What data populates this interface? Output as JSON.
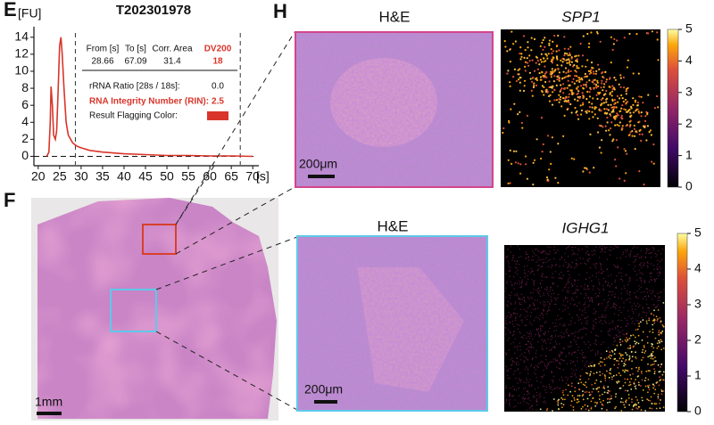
{
  "panel_labels": {
    "e": "E",
    "f": "F",
    "h": "H"
  },
  "chart_data": {
    "type": "line",
    "title": "T202301978",
    "y_unit": "[FU]",
    "x_unit": "[s]",
    "x": [
      22,
      22.5,
      22.8,
      23,
      23.3,
      23.6,
      24,
      24.3,
      24.6,
      25,
      25.3,
      25.6,
      26,
      26.5,
      27,
      28,
      29,
      30,
      32,
      35,
      40,
      45,
      50,
      55,
      60,
      65,
      70
    ],
    "series": [
      {
        "name": "T202301978",
        "color": "#d9352a",
        "values": [
          0,
          0.5,
          4,
          8.2,
          6,
          2.5,
          2,
          3,
          7,
          13,
          14,
          12,
          8,
          4,
          2.5,
          1.6,
          1.2,
          1,
          0.7,
          0.5,
          0.3,
          0.2,
          0.1,
          0.1,
          0.05,
          0.05,
          0
        ]
      }
    ],
    "xlim": [
      19,
      71
    ],
    "ylim": [
      -1,
      14.5
    ],
    "xticks": [
      20,
      25,
      30,
      35,
      40,
      45,
      50,
      55,
      60,
      65,
      70
    ],
    "yticks": [
      0,
      2,
      4,
      6,
      8,
      10,
      12,
      14
    ],
    "baseline": 0,
    "table": {
      "headers": [
        "From [s]",
        "To [s]",
        "Corr. Area",
        "DV200"
      ],
      "from": 28.66,
      "to": 67.09,
      "corr_area": 31.4,
      "dv200": 18,
      "ratio_label": "rRNA Ratio [28s / 18s]:",
      "ratio_value": "0.0",
      "rin_label": "RNA Integrity Number (RIN):",
      "rin_value": 2.5,
      "flag_label": "Result Flagging Color:",
      "flag_color": "#d9352a"
    }
  },
  "images": {
    "he_top": {
      "title": "H&E",
      "scale": "200μm",
      "border": "#d2458c"
    },
    "spp1": {
      "title": "SPP1"
    },
    "he_bottom": {
      "title": "H&E",
      "scale": "200μm",
      "border": "#5ec9ea"
    },
    "ighg1": {
      "title": "IGHG1"
    },
    "overview": {
      "scale": "1mm",
      "box_red": "#d8402a",
      "box_cyan": "#5ec9ea"
    }
  },
  "colorbars": [
    {
      "ticks": [
        0,
        1,
        2,
        3,
        4,
        5
      ],
      "lim": [
        0,
        5
      ]
    },
    {
      "ticks": [
        0,
        1,
        2,
        3,
        4,
        5
      ],
      "lim": [
        0,
        5
      ]
    }
  ]
}
